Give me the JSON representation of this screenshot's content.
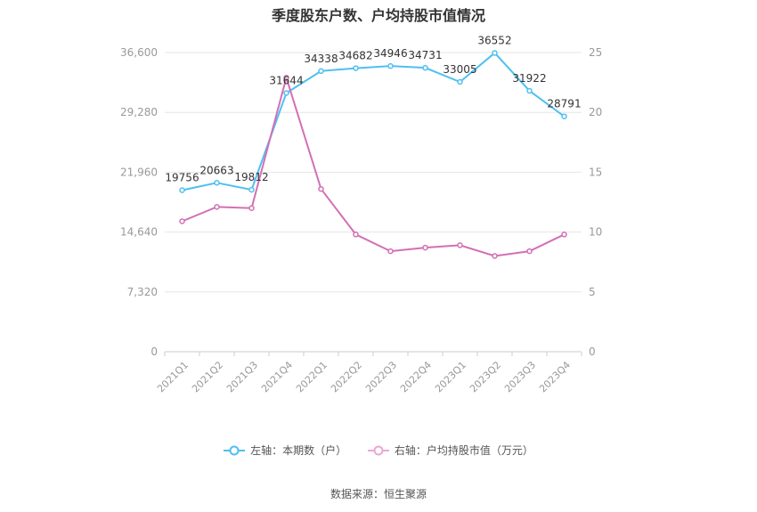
{
  "chart_data": {
    "type": "line",
    "title": "季度股东户数、户均持股市值情况",
    "categories": [
      "2021Q1",
      "2021Q2",
      "2021Q3",
      "2021Q4",
      "2022Q1",
      "2022Q2",
      "2022Q3",
      "2022Q4",
      "2023Q1",
      "2023Q2",
      "2023Q3",
      "2023Q4"
    ],
    "left_axis": {
      "ylim": [
        0,
        36600
      ],
      "ticks": [
        "0",
        "7,320",
        "14,640",
        "21,960",
        "29,280",
        "36,600"
      ],
      "tick_values": [
        0,
        7320,
        14640,
        21960,
        29280,
        36600
      ]
    },
    "right_axis": {
      "ylim": [
        0,
        25
      ],
      "ticks": [
        "0",
        "5",
        "10",
        "15",
        "20",
        "25"
      ],
      "tick_values": [
        0,
        5,
        10,
        15,
        20,
        25
      ]
    },
    "series": [
      {
        "name": "左轴：本期数（户）",
        "axis": "left",
        "color": "#4fc0f0",
        "values": [
          19756,
          20663,
          19812,
          31644,
          34338,
          34682,
          34946,
          34731,
          33005,
          36552,
          31922,
          28791
        ],
        "labels": [
          "19756",
          "20663",
          "19812",
          "31644",
          "34338",
          "34682",
          "34946",
          "34731",
          "33005",
          "36552",
          "31922",
          "28791"
        ]
      },
      {
        "name": "右轴：户均持股市值（万元）",
        "axis": "right",
        "color": "#d36fb4",
        "values": [
          10.9,
          12.1,
          12.0,
          22.9,
          13.6,
          9.8,
          8.4,
          8.7,
          8.9,
          8.0,
          8.4,
          9.8
        ]
      }
    ],
    "grid": true,
    "legend": "bottom"
  },
  "source": "数据来源：恒生聚源"
}
